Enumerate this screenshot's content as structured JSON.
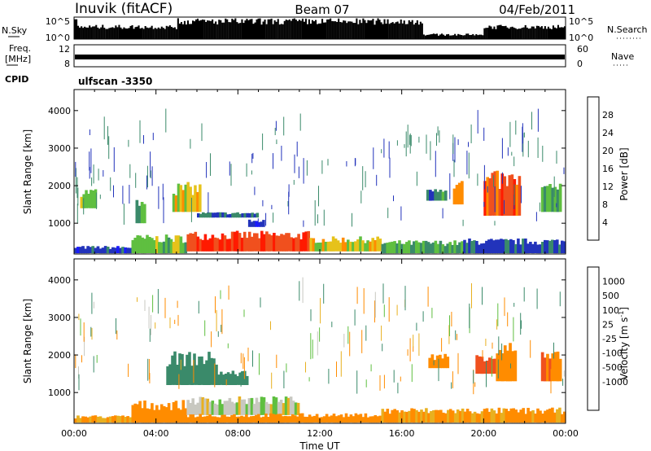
{
  "header": {
    "station": "Inuvik (fitACF)",
    "beam": "Beam 07",
    "date": "04/Feb/2011"
  },
  "strips": {
    "nsky_label": "N.Sky",
    "nsky_ticks": [
      "10^5",
      "10^0"
    ],
    "nsearch_label": "N.Search",
    "nsearch_ticks": [
      "10^5",
      "10^0"
    ],
    "freq_label": "Freq.",
    "freq_unit": "[MHz]",
    "freq_ticks": [
      "12",
      "8"
    ],
    "nave_label": "Nave",
    "nave_ticks": [
      "60",
      "0"
    ],
    "cpid_label": "CPID",
    "cpid_value": "ulfscan -3350"
  },
  "colors": {
    "power_scale": [
      "#1a1aff",
      "#2233bb",
      "#3a8a6a",
      "#5fbf40",
      "#e6c21a",
      "#ff8c00",
      "#f0501e",
      "#ff1a00"
    ],
    "velocity_scale": [
      "#ff1a00",
      "#f0501e",
      "#ff8c00",
      "#e8b020",
      "#c8c8c0",
      "#c8c8c0",
      "#5fbf40",
      "#3a8a6a",
      "#2f6f9f",
      "#2233bb"
    ],
    "ground_scatter": "#bebebe"
  },
  "chart_data": [
    {
      "type": "heatmap",
      "name": "power",
      "ylabel": "Slant Range [km]",
      "xlabel": "Time UT",
      "x_ticks": [
        "00:00",
        "04:00",
        "08:00",
        "12:00",
        "16:00",
        "20:00",
        "00:00"
      ],
      "xlim_hours": [
        0,
        24
      ],
      "ylim_km": [
        180,
        4560
      ],
      "y_ticks": [
        1000,
        2000,
        3000,
        4000
      ],
      "colorbar_label": "Power [dB]",
      "colorbar_ticks": [
        4,
        8,
        12,
        16,
        20,
        24,
        28
      ],
      "colorbar_range": [
        0,
        32
      ],
      "regions": [
        {
          "t0": 0.3,
          "t1": 1.1,
          "r0": 1400,
          "r1": 1950,
          "v": 14
        },
        {
          "t0": 0.0,
          "t1": 2.8,
          "r0": 200,
          "r1": 400,
          "v": 6
        },
        {
          "t0": 2.8,
          "t1": 5.5,
          "r0": 200,
          "r1": 700,
          "v": 14
        },
        {
          "t0": 5.5,
          "t1": 11.5,
          "r0": 250,
          "r1": 800,
          "v": 27
        },
        {
          "t0": 11.5,
          "t1": 15.0,
          "r0": 250,
          "r1": 650,
          "v": 18
        },
        {
          "t0": 15.0,
          "t1": 19.0,
          "r0": 200,
          "r1": 550,
          "v": 12
        },
        {
          "t0": 19.0,
          "t1": 24.0,
          "r0": 200,
          "r1": 600,
          "v": 7
        },
        {
          "t0": 3.0,
          "t1": 3.5,
          "r0": 1000,
          "r1": 1800,
          "v": 13
        },
        {
          "t0": 4.8,
          "t1": 6.2,
          "r0": 1300,
          "r1": 2100,
          "v": 18
        },
        {
          "t0": 6.0,
          "t1": 9.0,
          "r0": 1150,
          "r1": 1300,
          "v": 8
        },
        {
          "t0": 8.5,
          "t1": 9.3,
          "r0": 900,
          "r1": 1100,
          "v": 6
        },
        {
          "t0": 17.2,
          "t1": 18.2,
          "r0": 1600,
          "r1": 2000,
          "v": 10
        },
        {
          "t0": 18.5,
          "t1": 19.0,
          "r0": 1500,
          "r1": 2200,
          "v": 22
        },
        {
          "t0": 20.0,
          "t1": 21.8,
          "r0": 1200,
          "r1": 2400,
          "v": 26
        },
        {
          "t0": 22.8,
          "t1": 23.8,
          "r0": 1300,
          "r1": 2100,
          "v": 12
        }
      ]
    },
    {
      "type": "heatmap",
      "name": "velocity",
      "ylabel": "Slant Range [km]",
      "xlabel": "Time UT",
      "x_ticks": [
        "00:00",
        "04:00",
        "08:00",
        "12:00",
        "16:00",
        "20:00",
        "00:00"
      ],
      "xlim_hours": [
        0,
        24
      ],
      "ylim_km": [
        180,
        4560
      ],
      "y_ticks": [
        1000,
        2000,
        3000,
        4000
      ],
      "colorbar_label": "Velocity [m s",
      "colorbar_label_sup": "-1",
      "colorbar_ticks": [
        "1000",
        "500",
        "100",
        "25",
        "-25",
        "-100",
        "-500",
        "-1000"
      ],
      "regions": [
        {
          "t0": 0.0,
          "t1": 2.8,
          "r0": 200,
          "r1": 400,
          "v": -100
        },
        {
          "t0": 2.8,
          "t1": 5.5,
          "r0": 200,
          "r1": 800,
          "v": -200
        },
        {
          "t0": 5.5,
          "t1": 11.0,
          "r0": 400,
          "r1": 900,
          "v": 0
        },
        {
          "t0": 5.5,
          "t1": 15.0,
          "r0": 200,
          "r1": 450,
          "v": -300
        },
        {
          "t0": 15.0,
          "t1": 24.0,
          "r0": 200,
          "r1": 600,
          "v": -120
        },
        {
          "t0": 4.5,
          "t1": 7.0,
          "r0": 1200,
          "r1": 2100,
          "v": 200
        },
        {
          "t0": 7.0,
          "t1": 8.5,
          "r0": 1200,
          "r1": 1600,
          "v": 150
        },
        {
          "t0": 17.3,
          "t1": 18.3,
          "r0": 1650,
          "r1": 2050,
          "v": -200
        },
        {
          "t0": 19.6,
          "t1": 20.6,
          "r0": 1500,
          "r1": 2100,
          "v": -700
        },
        {
          "t0": 20.6,
          "t1": 21.6,
          "r0": 1300,
          "r1": 2400,
          "v": -400
        },
        {
          "t0": 22.8,
          "t1": 23.8,
          "r0": 1300,
          "r1": 2100,
          "v": -500
        }
      ]
    }
  ]
}
